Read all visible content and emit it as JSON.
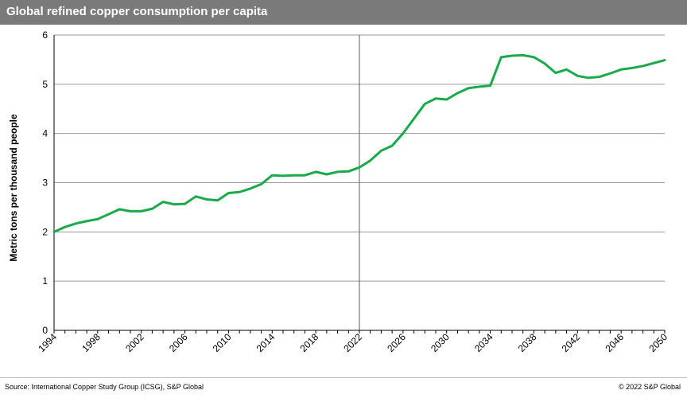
{
  "header": {
    "title": "Global refined copper consumption per capita"
  },
  "footer": {
    "source": "Source: International Copper Study Group (ICSG), S&P Global",
    "copyright": "© 2022 S&P Global"
  },
  "colors": {
    "header_bg": "#7a7a7a",
    "line": "#1aaa4a",
    "grid": "#9a9a9a",
    "divider": "#595959"
  },
  "chart_data": {
    "type": "line",
    "title": "Global refined copper consumption per capita",
    "ylabel": "Metric tons per thousand people",
    "xlabel": "",
    "xlim": [
      1994,
      2050
    ],
    "ylim": [
      0,
      6
    ],
    "yticks": [
      0,
      1,
      2,
      3,
      4,
      5,
      6
    ],
    "xticks": [
      1994,
      1998,
      2002,
      2006,
      2010,
      2014,
      2018,
      2022,
      2026,
      2030,
      2034,
      2038,
      2042,
      2046,
      2050
    ],
    "grid": true,
    "reference_line_x": 2022,
    "series": [
      {
        "x": [
          1994,
          1995,
          1996,
          1997,
          1998,
          1999,
          2000,
          2001,
          2002,
          2003,
          2004,
          2005,
          2006,
          2007,
          2008,
          2009,
          2010,
          2011,
          2012,
          2013,
          2014,
          2015,
          2016,
          2017,
          2018,
          2019,
          2020,
          2021,
          2022,
          2023,
          2024,
          2025,
          2026,
          2027,
          2028,
          2029,
          2030,
          2031,
          2032,
          2033,
          2034,
          2035,
          2036,
          2037,
          2038,
          2039,
          2040,
          2041,
          2042,
          2043,
          2044,
          2045,
          2046,
          2047,
          2048,
          2049,
          2050
        ],
        "values": [
          2.0,
          2.1,
          2.17,
          2.22,
          2.26,
          2.36,
          2.46,
          2.42,
          2.42,
          2.47,
          2.61,
          2.56,
          2.57,
          2.72,
          2.66,
          2.64,
          2.79,
          2.81,
          2.88,
          2.97,
          3.15,
          3.14,
          3.15,
          3.15,
          3.22,
          3.17,
          3.22,
          3.23,
          3.31,
          3.45,
          3.65,
          3.75,
          4.0,
          4.3,
          4.6,
          4.71,
          4.69,
          4.82,
          4.92,
          4.95,
          4.97,
          5.55,
          5.58,
          5.59,
          5.55,
          5.42,
          5.23,
          5.3,
          5.17,
          5.13,
          5.15,
          5.22,
          5.3,
          5.33,
          5.37,
          5.43,
          5.49
        ]
      }
    ]
  }
}
